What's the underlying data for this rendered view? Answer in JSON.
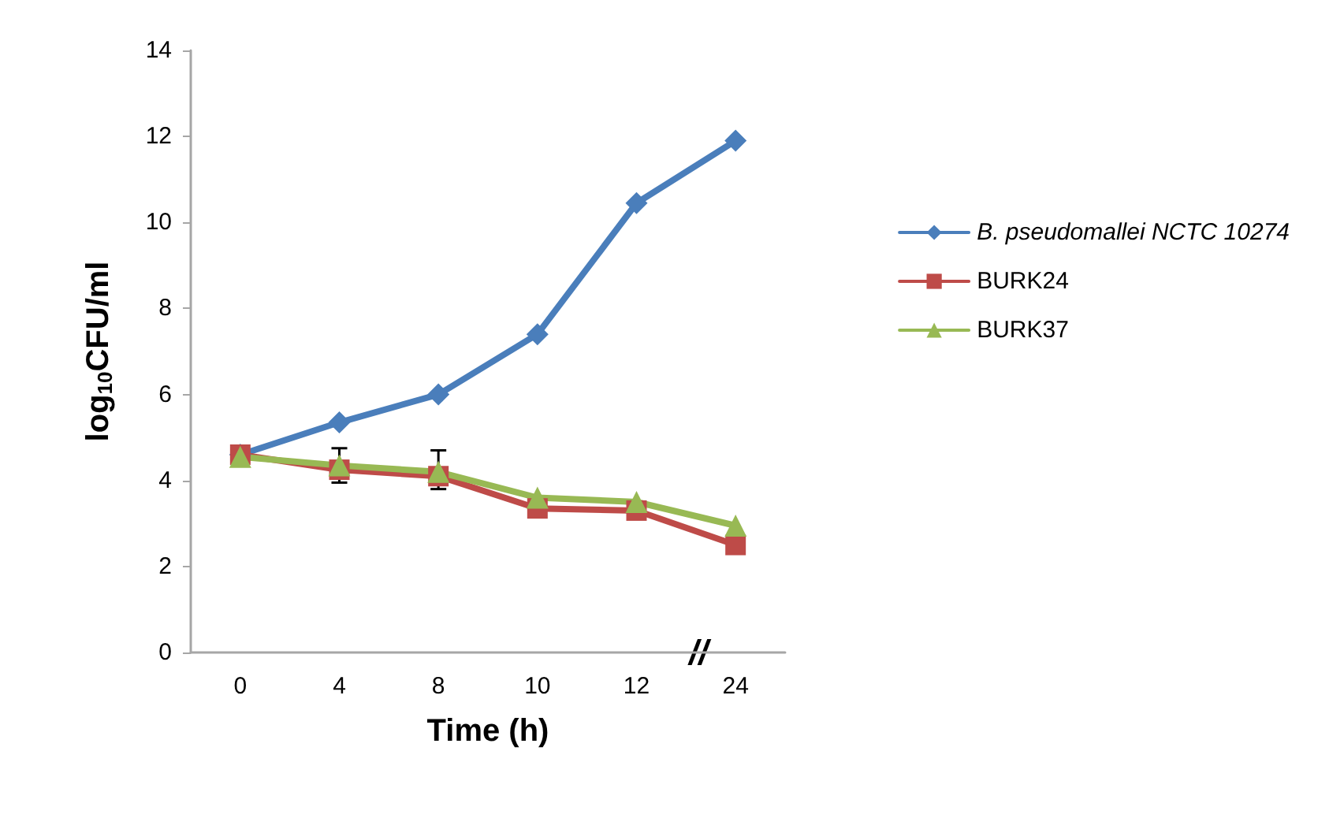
{
  "chart_data": {
    "type": "line",
    "xlabel": "Time (h)",
    "ylabel": "log$_{10}$CFU/ml",
    "categories": [
      "0",
      "4",
      "8",
      "10",
      "12",
      "24"
    ],
    "series": [
      {
        "name": "B. pseudomallei NCTC 10274",
        "color": "#4a7ebb",
        "marker": "diamond",
        "values": [
          4.6,
          5.35,
          6.0,
          7.4,
          10.45,
          11.9
        ]
      },
      {
        "name": "BURK24",
        "color": "#be4b48",
        "marker": "square",
        "values": [
          4.6,
          4.25,
          4.1,
          3.35,
          3.3,
          2.5
        ],
        "errors": [
          null,
          [
            3.95,
            4.75
          ],
          [
            3.8,
            4.7
          ],
          null,
          null,
          null
        ]
      },
      {
        "name": "BURK37",
        "color": "#98b954",
        "marker": "triangle",
        "values": [
          4.55,
          4.35,
          4.2,
          3.6,
          3.5,
          2.95
        ]
      }
    ],
    "annotations": [
      "//"
    ],
    "ylim": [
      0,
      14
    ],
    "yticks": [
      0,
      2,
      4,
      6,
      8,
      10,
      12,
      14
    ],
    "grid": false,
    "legend": "right"
  }
}
